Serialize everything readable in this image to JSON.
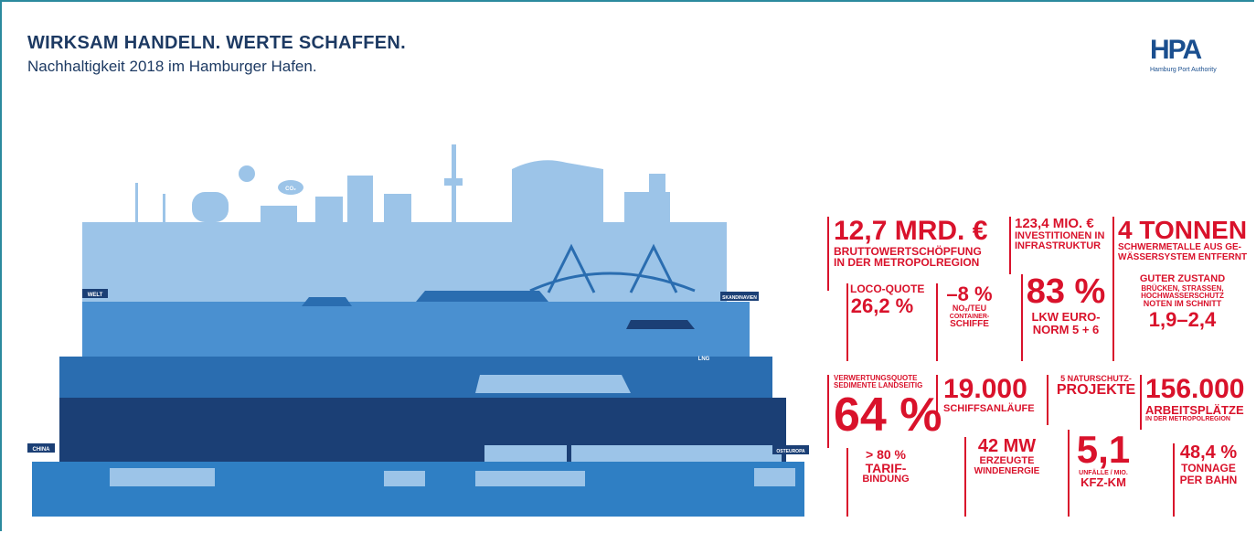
{
  "header": {
    "title": "WIRKSAM HANDELN. WERTE SCHAFFEN.",
    "subtitle": "Nachhaltigkeit 2018 im Hamburger Hafen."
  },
  "logo": {
    "mark": "HPA",
    "caption": "Hamburg Port Authority"
  },
  "illustration": {
    "signs": [
      "WELT",
      "SKANDINAVIEN",
      "CHINA",
      "OSTEUROPA"
    ],
    "cloud": "CO₂",
    "tower": "LNG"
  },
  "stats": [
    {
      "lines": [
        "12,7 MRD. €",
        "BRUTTOWERTSCHÖPFUNG",
        "IN DER METROPOLREGION"
      ]
    },
    {
      "lines": [
        "123,4 MIO. €",
        "INVESTITIONEN IN",
        "INFRASTRUKTUR"
      ]
    },
    {
      "lines": [
        "4 TONNEN",
        "SCHWERMETALLE AUS GE-",
        "WÄSSERSYSTEM ENTFERNT"
      ]
    },
    {
      "lines": [
        "LOCO-QUOTE",
        "26,2 %"
      ]
    },
    {
      "lines": [
        "–8 %",
        "NOₓ/TEU",
        "CONTAINER-",
        "SCHIFFE"
      ]
    },
    {
      "lines": [
        "83 %",
        "LKW EURO-",
        "NORM 5 + 6"
      ]
    },
    {
      "lines": [
        "GUTER ZUSTAND",
        "BRÜCKEN, STRASSEN,",
        "HOCHWASSERSCHUTZ",
        "NOTEN IM SCHNITT",
        "1,9–2,4"
      ]
    },
    {
      "lines": [
        "VERWERTUNGSQUOTE",
        "SEDIMENTE LANDSEITIG",
        "64 %"
      ]
    },
    {
      "lines": [
        "19.000",
        "SCHIFFSANLÄUFE"
      ]
    },
    {
      "lines": [
        "5 NATURSCHUTZ-",
        "PROJEKTE"
      ]
    },
    {
      "lines": [
        "156.000",
        "ARBEITSPLÄTZE",
        "IN DER METROPOLREGION"
      ]
    },
    {
      "lines": [
        "> 80 %",
        "TARIF-",
        "BINDUNG"
      ]
    },
    {
      "lines": [
        "42 MW",
        "ERZEUGTE",
        "WINDENERGIE"
      ]
    },
    {
      "lines": [
        "5,1",
        "UNFÄLLE / MIO.",
        "KFZ-KM"
      ]
    },
    {
      "lines": [
        "48,4 %",
        "TONNAGE",
        "PER BAHN"
      ]
    }
  ]
}
